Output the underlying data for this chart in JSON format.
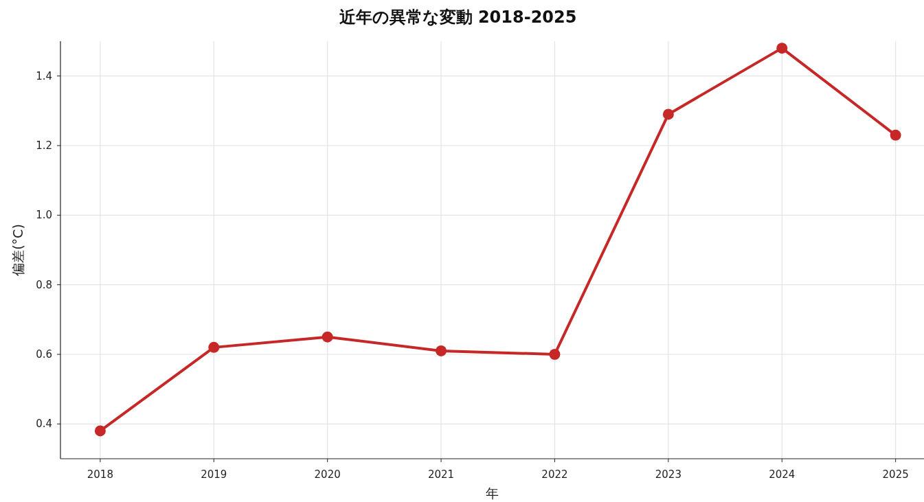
{
  "chart_data": {
    "type": "line",
    "title": "近年の異常な変動 2018-2025",
    "xlabel": "年",
    "ylabel": "偏差(°C)",
    "x": [
      2018,
      2019,
      2020,
      2021,
      2022,
      2023,
      2024,
      2025
    ],
    "series": [
      {
        "color": "#c62828",
        "values": [
          0.38,
          0.62,
          0.65,
          0.61,
          0.6,
          1.29,
          1.48,
          1.23
        ]
      }
    ],
    "xlim": [
      2017.65,
      2025.25
    ],
    "xticks": [
      2018,
      2019,
      2020,
      2021,
      2022,
      2023,
      2024,
      2025
    ],
    "ylim": [
      0.3,
      1.5
    ],
    "yticks": [
      {
        "value": 0.4,
        "label": "0.4"
      },
      {
        "value": 0.6,
        "label": "0.6"
      },
      {
        "value": 0.8,
        "label": "0.8"
      },
      {
        "value": 1.0,
        "label": "1.0"
      },
      {
        "value": 1.2,
        "label": "1.2"
      },
      {
        "value": 1.4,
        "label": "1.4"
      }
    ],
    "grid": true,
    "marker": "circle",
    "line_style": "solid"
  }
}
